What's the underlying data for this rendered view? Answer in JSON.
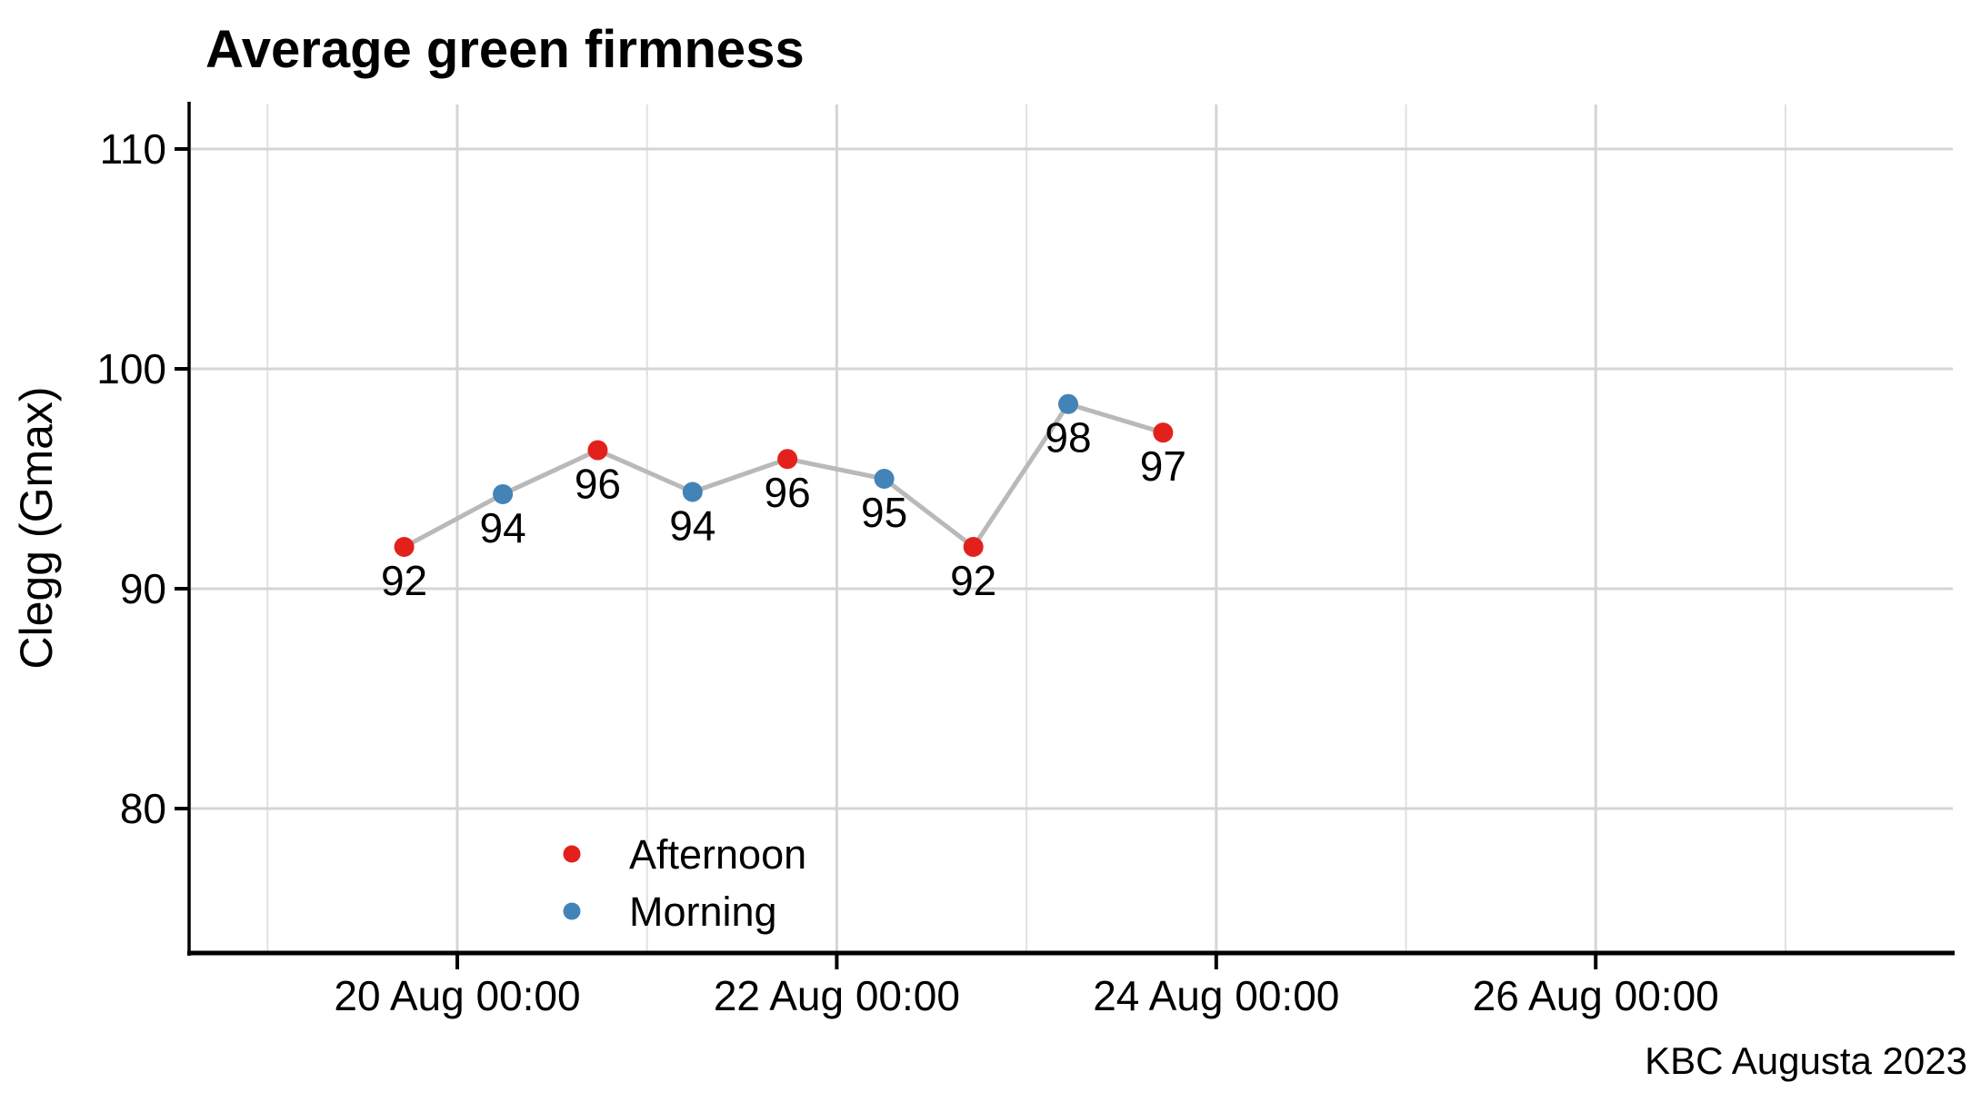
{
  "title": "Average green firmness",
  "caption": "KBC Augusta 2023",
  "y_axis": {
    "label": "Clegg (Gmax)",
    "ticks": [
      110,
      100,
      90,
      80
    ]
  },
  "x_axis": {
    "ticks": [
      {
        "label": "20 Aug 00:00",
        "day": 0
      },
      {
        "label": "22 Aug 00:00",
        "day": 2
      },
      {
        "label": "24 Aug 00:00",
        "day": 4
      },
      {
        "label": "26 Aug 00:00",
        "day": 6
      }
    ],
    "minor_grid_days": [
      -1,
      1,
      3,
      5,
      7
    ]
  },
  "legend": {
    "items": [
      {
        "label": "Afternoon",
        "color": "#e3211c"
      },
      {
        "label": "Morning",
        "color": "#4383b8"
      }
    ]
  },
  "colors": {
    "line": "#b9b9b9",
    "grid_major": "#d5d5d5",
    "grid_minor": "#e1e1e1",
    "axis": "#000000"
  },
  "chart_data": {
    "type": "line",
    "title": "Average green firmness",
    "xlabel": "",
    "ylabel": "Clegg (Gmax)",
    "caption": "KBC Augusta 2023",
    "x_unit": "days after 20 Aug 2023 00:00",
    "xlim_days": [
      -1.41,
      7.88
    ],
    "ylim": [
      73.4,
      112.2
    ],
    "y_ticks": [
      80,
      90,
      100,
      110
    ],
    "x_major_days": [
      0,
      2,
      4,
      6
    ],
    "x_major_labels": [
      "20 Aug 00:00",
      "22 Aug 00:00",
      "24 Aug 00:00",
      "26 Aug 00:00"
    ],
    "x_minor_days": [
      -1,
      1,
      3,
      5,
      7
    ],
    "grid": "x major+minor, y major only",
    "legend_position": "inside bottom-left",
    "series_colors": {
      "Afternoon": "#e3211c",
      "Morning": "#4383b8"
    },
    "points": [
      {
        "day": -0.28,
        "value": 91.9,
        "label": "92",
        "series": "Afternoon"
      },
      {
        "day": 0.24,
        "value": 94.3,
        "label": "94",
        "series": "Morning"
      },
      {
        "day": 0.74,
        "value": 96.3,
        "label": "96",
        "series": "Afternoon"
      },
      {
        "day": 1.24,
        "value": 94.4,
        "label": "94",
        "series": "Morning"
      },
      {
        "day": 1.74,
        "value": 95.9,
        "label": "96",
        "series": "Afternoon"
      },
      {
        "day": 2.25,
        "value": 95.0,
        "label": "95",
        "series": "Morning"
      },
      {
        "day": 2.72,
        "value": 91.9,
        "label": "92",
        "series": "Afternoon"
      },
      {
        "day": 3.22,
        "value": 98.4,
        "label": "98",
        "series": "Morning"
      },
      {
        "day": 3.72,
        "value": 97.1,
        "label": "97",
        "series": "Afternoon"
      }
    ]
  }
}
